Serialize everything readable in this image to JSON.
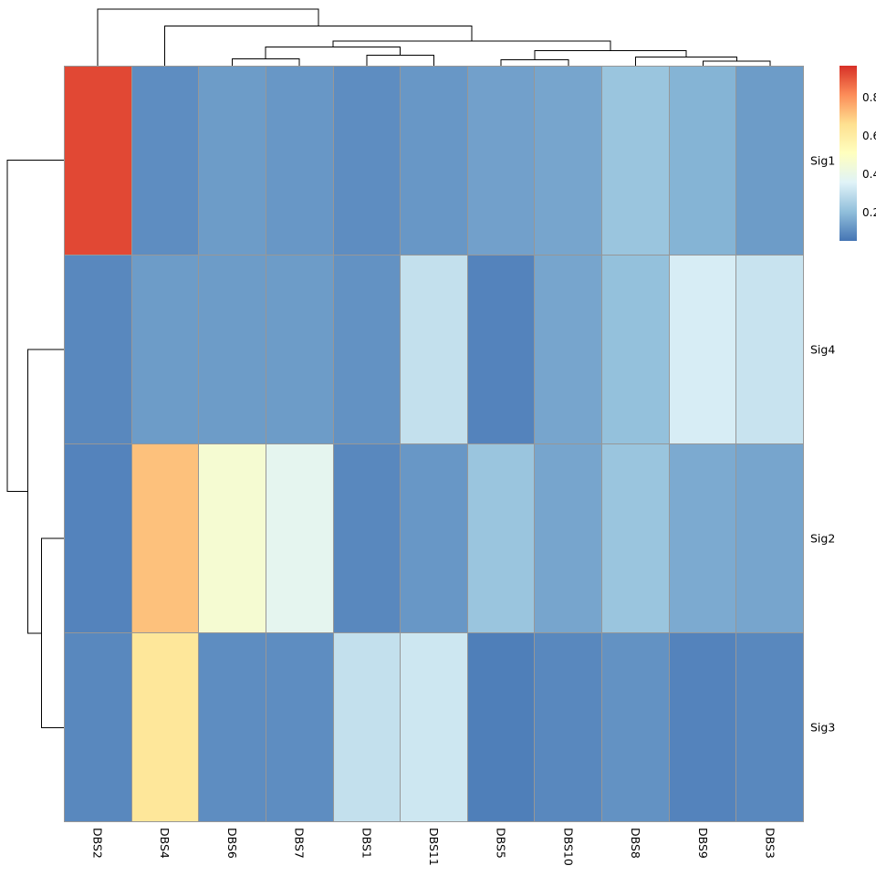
{
  "figure": {
    "background": "#ffffff",
    "grid_line_color": "#979797",
    "dendrogram_line_color": "#000000"
  },
  "chart_data": {
    "type": "heatmap",
    "title": "",
    "xlabel": "",
    "ylabel": "",
    "columns": [
      "DBS2",
      "DBS4",
      "DBS6",
      "DBS7",
      "DBS1",
      "DBS11",
      "DBS5",
      "DBS10",
      "DBS8",
      "DBS9",
      "DBS3"
    ],
    "rows": [
      "Sig1",
      "Sig4",
      "Sig2",
      "Sig3"
    ],
    "values": [
      [
        0.93,
        0.1,
        0.13,
        0.12,
        0.1,
        0.12,
        0.14,
        0.15,
        0.22,
        0.18,
        0.13
      ],
      [
        0.09,
        0.13,
        0.13,
        0.13,
        0.11,
        0.3,
        0.08,
        0.15,
        0.21,
        0.34,
        0.31
      ],
      [
        0.08,
        0.72,
        0.46,
        0.38,
        0.09,
        0.12,
        0.22,
        0.15,
        0.22,
        0.16,
        0.15
      ],
      [
        0.09,
        0.63,
        0.1,
        0.1,
        0.3,
        0.32,
        0.07,
        0.09,
        0.11,
        0.08,
        0.09
      ]
    ],
    "color_scale": {
      "vmin": 0.05,
      "vmax": 0.97,
      "stops": [
        "#4575B4",
        "#91BFDB",
        "#E0F3F8",
        "#FFFFBF",
        "#FEE090",
        "#FC8D59",
        "#D73027"
      ]
    },
    "legend": {
      "ticks": [
        0.8,
        0.6,
        0.4,
        0.2
      ],
      "position": "right"
    },
    "column_dendrogram": {
      "merges": [
        {
          "a": "L2",
          "b": "L3",
          "h": 0.12
        },
        {
          "a": "L4",
          "b": "L5",
          "h": 0.18
        },
        {
          "a": "L9",
          "b": "L10",
          "h": 0.08
        },
        {
          "a": "L8",
          "b": "M2",
          "h": 0.15
        },
        {
          "a": "L6",
          "b": "L7",
          "h": 0.1
        },
        {
          "a": "M4",
          "b": "M3",
          "h": 0.26
        },
        {
          "a": "M0",
          "b": "M1",
          "h": 0.32
        },
        {
          "a": "M6",
          "b": "M5",
          "h": 0.42
        },
        {
          "a": "L1",
          "b": "M7",
          "h": 0.68
        },
        {
          "a": "L0",
          "b": "M8",
          "h": 0.97
        }
      ]
    },
    "row_dendrogram": {
      "merges": [
        {
          "a": "L2",
          "b": "L3",
          "h": 0.38
        },
        {
          "a": "L1",
          "b": "M0",
          "h": 0.62
        },
        {
          "a": "L0",
          "b": "M1",
          "h": 0.97
        }
      ]
    }
  }
}
